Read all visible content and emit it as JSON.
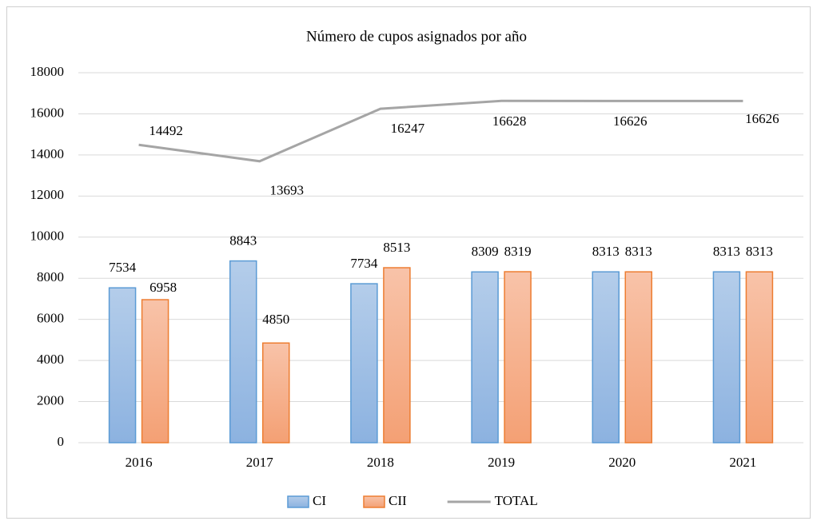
{
  "chart_data": {
    "type": "bar",
    "title": "Número de cupos asignados por año",
    "categories": [
      "2016",
      "2017",
      "2018",
      "2019",
      "2020",
      "2021"
    ],
    "series": [
      {
        "name": "CI",
        "color": "#5b9bd5",
        "values": [
          7534,
          8843,
          7734,
          8309,
          8313,
          8313
        ]
      },
      {
        "name": "CII",
        "color": "#ed7d31",
        "values": [
          6958,
          4850,
          8513,
          8319,
          8313,
          8313
        ]
      },
      {
        "name": "TOTAL",
        "type": "line",
        "color": "#a5a5a5",
        "values": [
          14492,
          13693,
          16247,
          16628,
          16626,
          16626
        ]
      }
    ],
    "ylim": [
      0,
      18000
    ],
    "yticks": [
      0,
      2000,
      4000,
      6000,
      8000,
      10000,
      12000,
      14000,
      16000,
      18000
    ],
    "grid": true,
    "legend": "bottom"
  }
}
